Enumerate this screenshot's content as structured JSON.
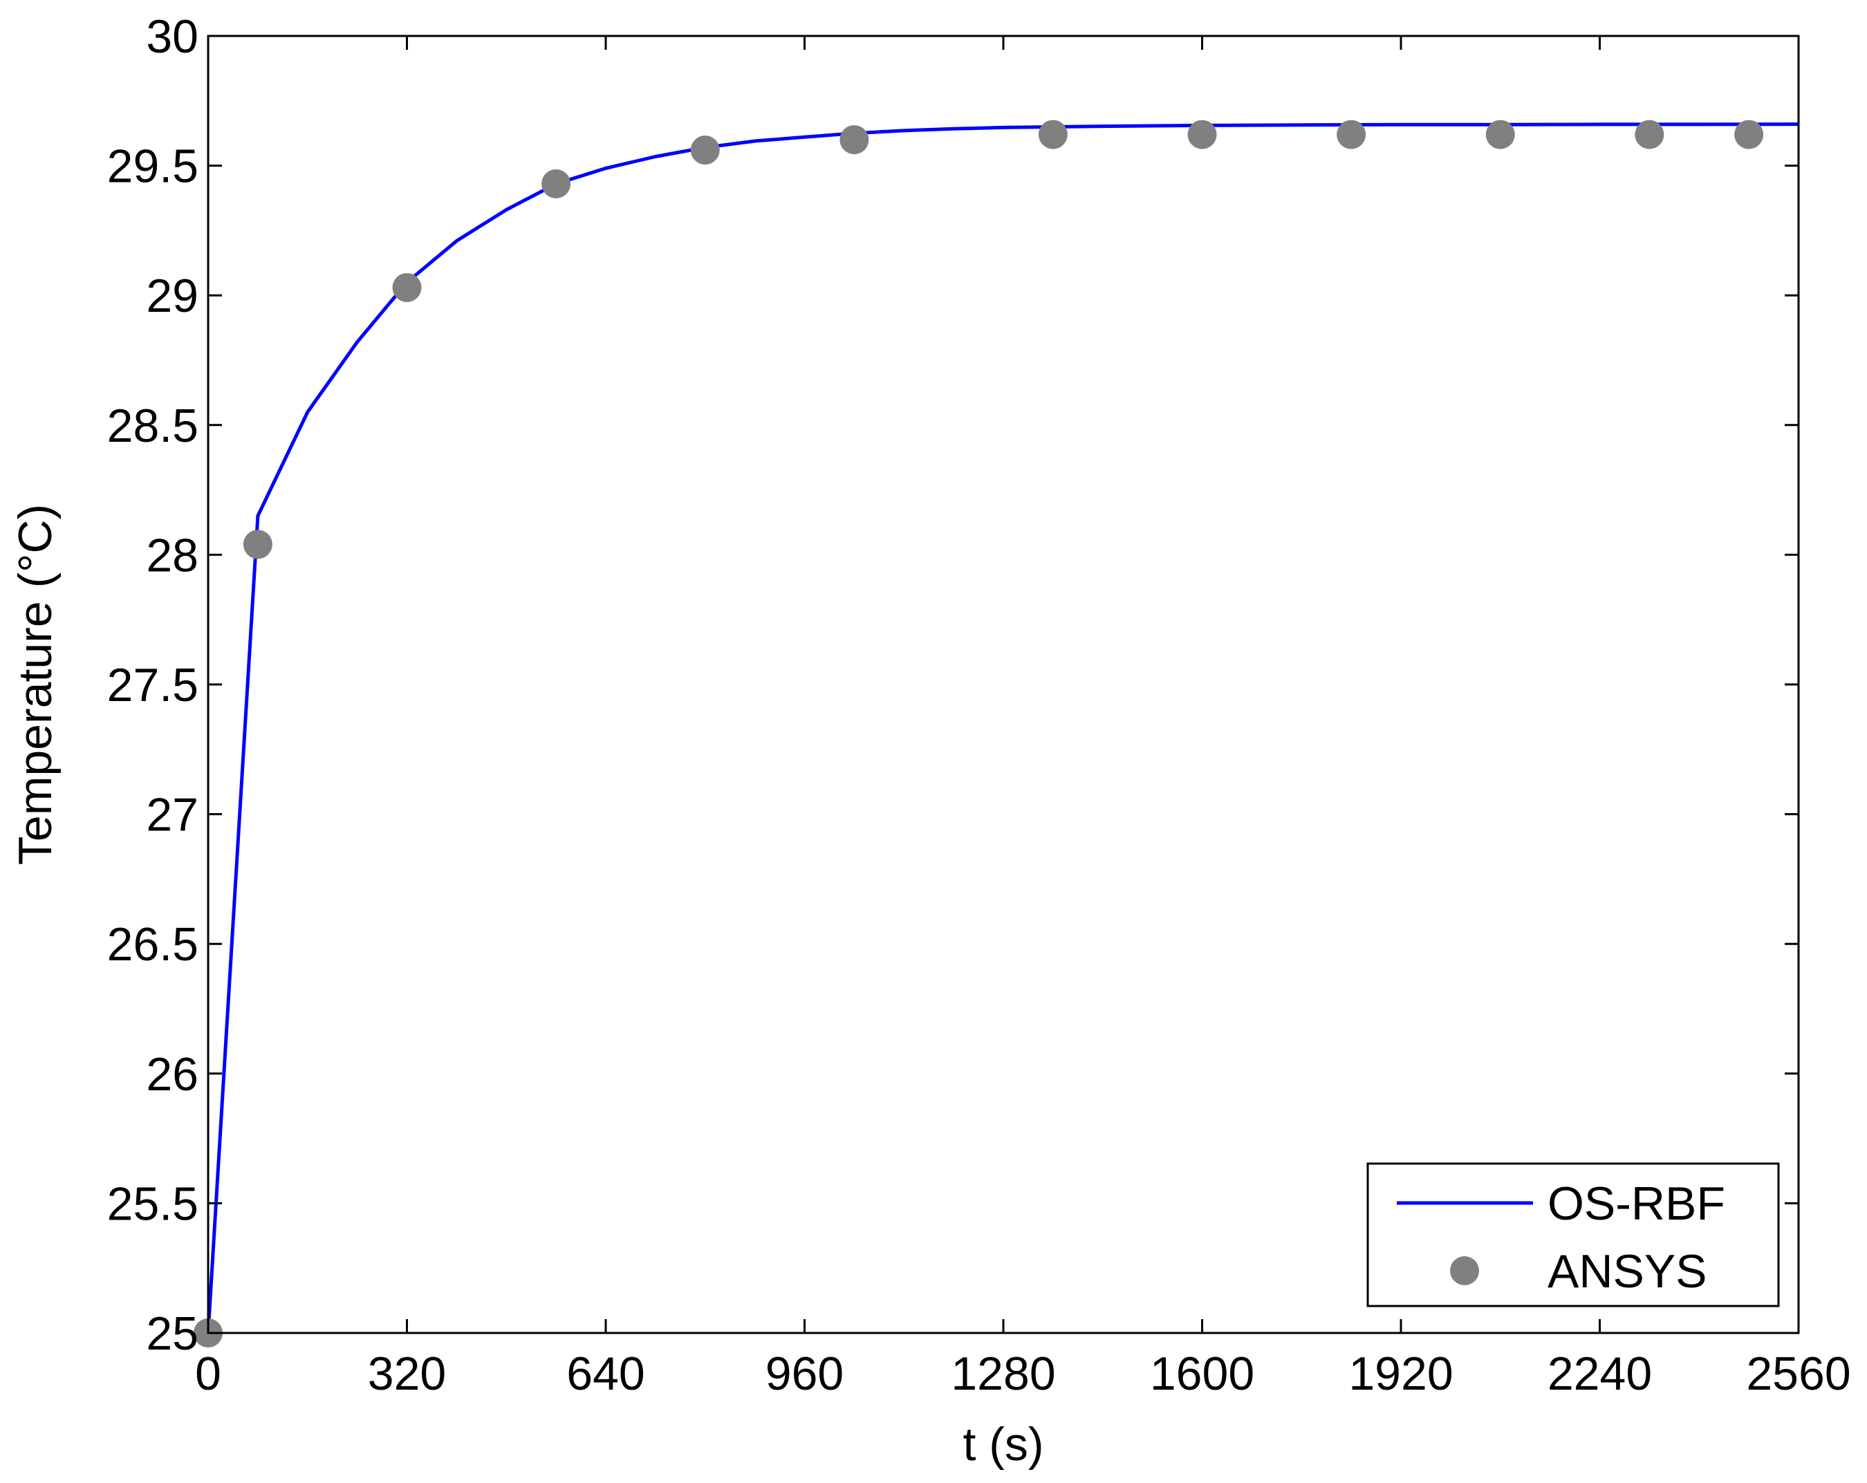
{
  "chart_data": {
    "type": "line",
    "title": "",
    "xlabel": "t (s)",
    "ylabel": "Temperature (°C)",
    "xlim": [
      0,
      2560
    ],
    "ylim": [
      25,
      30
    ],
    "xticks": [
      0,
      320,
      640,
      960,
      1280,
      1600,
      1920,
      2240,
      2560
    ],
    "xtick_labels": [
      "0",
      "320",
      "640",
      "960",
      "1280",
      "1600",
      "1920",
      "2240",
      "2560"
    ],
    "yticks": [
      25,
      25.5,
      26,
      26.5,
      27,
      27.5,
      28,
      28.5,
      29,
      29.5,
      30
    ],
    "ytick_labels": [
      "25",
      "25.5",
      "26",
      "26.5",
      "27",
      "27.5",
      "28",
      "28.5",
      "29",
      "29.5",
      "30"
    ],
    "grid": false,
    "legend_position": "bottom-right",
    "series": [
      {
        "name": "OS-RBF",
        "style": "line",
        "color": "#0000ff",
        "x": [
          0,
          80,
          160,
          240,
          320,
          400,
          480,
          560,
          640,
          720,
          800,
          880,
          960,
          1040,
          1120,
          1200,
          1280,
          1440,
          1600,
          1760,
          1920,
          2080,
          2240,
          2400,
          2560
        ],
        "y": [
          25.0,
          28.15,
          28.55,
          28.82,
          29.05,
          29.21,
          29.33,
          29.43,
          29.49,
          29.535,
          29.57,
          29.595,
          29.61,
          29.625,
          29.635,
          29.642,
          29.647,
          29.652,
          29.655,
          29.657,
          29.658,
          29.658,
          29.659,
          29.659,
          29.66
        ]
      },
      {
        "name": "ANSYS",
        "style": "markers",
        "color": "#808080",
        "x": [
          0,
          80,
          320,
          560,
          800,
          1040,
          1360,
          1600,
          1840,
          2080,
          2320,
          2480
        ],
        "y": [
          25.0,
          28.04,
          29.03,
          29.43,
          29.56,
          29.6,
          29.62,
          29.62,
          29.62,
          29.62,
          29.62,
          29.62
        ]
      }
    ]
  }
}
